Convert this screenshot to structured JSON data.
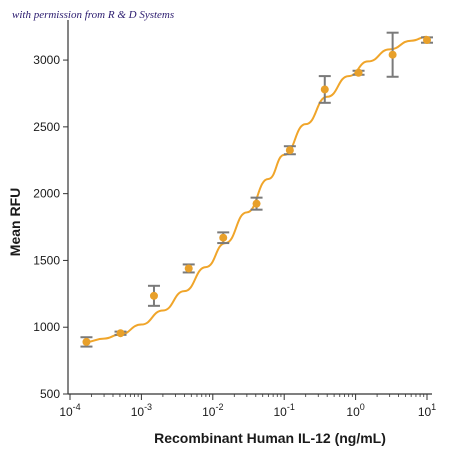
{
  "caption": "with permission from R & D Systems",
  "chart_data": {
    "type": "scatter",
    "xlabel": "Recombinant Human IL-12 (ng/mL)",
    "ylabel": "Mean RFU",
    "xscale": "log",
    "xlim": [
      0.0001,
      10
    ],
    "ylim": [
      500,
      3300
    ],
    "x_ticks": [
      0.0001,
      0.001,
      0.01,
      0.1,
      1,
      10
    ],
    "x_tick_labels": [
      {
        "base": "10",
        "exp": "-4"
      },
      {
        "base": "10",
        "exp": "-3"
      },
      {
        "base": "10",
        "exp": "-2"
      },
      {
        "base": "10",
        "exp": "-1"
      },
      {
        "base": "10",
        "exp": "0"
      },
      {
        "base": "10",
        "exp": "1"
      }
    ],
    "y_ticks": [
      500,
      1000,
      1500,
      2000,
      2500,
      3000
    ],
    "y_tick_labels": [
      "500",
      "1000",
      "1500",
      "2000",
      "2500",
      "3000"
    ],
    "grid": false,
    "legend": "none",
    "colors": {
      "points": "#e8a02a",
      "curve": "#f0a52a",
      "error_bars": "#7a7a7a",
      "axes": "#333333"
    },
    "series": [
      {
        "points": [
          {
            "x": 0.00017,
            "y": 890,
            "err": 35
          },
          {
            "x": 0.00051,
            "y": 955,
            "err": 12
          },
          {
            "x": 0.0015,
            "y": 1235,
            "err": 75
          },
          {
            "x": 0.0046,
            "y": 1440,
            "err": 30
          },
          {
            "x": 0.014,
            "y": 1670,
            "err": 40
          },
          {
            "x": 0.041,
            "y": 1925,
            "err": 45
          },
          {
            "x": 0.12,
            "y": 2325,
            "err": 30
          },
          {
            "x": 0.37,
            "y": 2780,
            "err": 100
          },
          {
            "x": 1.1,
            "y": 2905,
            "err": 15
          },
          {
            "x": 3.3,
            "y": 3040,
            "err": 165
          },
          {
            "x": 10,
            "y": 3150,
            "err": 20
          }
        ]
      }
    ],
    "fit_curve": {
      "x": [
        0.00017,
        0.0003,
        0.0005,
        0.001,
        0.002,
        0.004,
        0.008,
        0.015,
        0.03,
        0.06,
        0.1,
        0.2,
        0.4,
        0.8,
        1.5,
        3,
        6,
        10
      ],
      "y": [
        890,
        915,
        945,
        1020,
        1125,
        1270,
        1450,
        1630,
        1860,
        2110,
        2290,
        2520,
        2725,
        2880,
        2990,
        3080,
        3145,
        3175
      ]
    }
  }
}
